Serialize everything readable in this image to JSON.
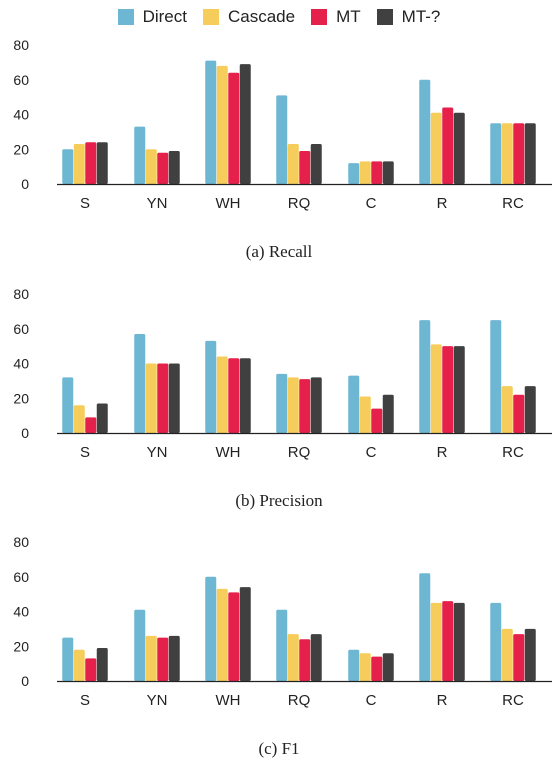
{
  "legend": {
    "series": [
      {
        "name": "Direct",
        "color": "#6db7d3"
      },
      {
        "name": "Cascade",
        "color": "#f6cd5b"
      },
      {
        "name": "MT",
        "color": "#e5204a"
      },
      {
        "name": "MT-?",
        "color": "#404040"
      }
    ]
  },
  "chart_data": [
    {
      "type": "bar",
      "caption": "(a) Recall",
      "categories": [
        "S",
        "YN",
        "WH",
        "RQ",
        "C",
        "R",
        "RC"
      ],
      "ylim": [
        0,
        80
      ],
      "yticks": [
        0,
        20,
        40,
        60,
        80
      ],
      "grid": false,
      "series": [
        {
          "name": "Direct",
          "values": [
            20,
            33,
            71,
            51,
            12,
            60,
            35
          ]
        },
        {
          "name": "Cascade",
          "values": [
            23,
            20,
            68,
            23,
            13,
            41,
            35
          ]
        },
        {
          "name": "MT",
          "values": [
            24,
            18,
            64,
            19,
            13,
            44,
            35
          ]
        },
        {
          "name": "MT-?",
          "values": [
            24,
            19,
            69,
            23,
            13,
            41,
            35
          ]
        }
      ]
    },
    {
      "type": "bar",
      "caption": "(b) Precision",
      "categories": [
        "S",
        "YN",
        "WH",
        "RQ",
        "C",
        "R",
        "RC"
      ],
      "ylim": [
        0,
        80
      ],
      "yticks": [
        0,
        20,
        40,
        60,
        80
      ],
      "grid": false,
      "series": [
        {
          "name": "Direct",
          "values": [
            32,
            57,
            53,
            34,
            33,
            65,
            65
          ]
        },
        {
          "name": "Cascade",
          "values": [
            16,
            40,
            44,
            32,
            21,
            51,
            27
          ]
        },
        {
          "name": "MT",
          "values": [
            9,
            40,
            43,
            31,
            14,
            50,
            22
          ]
        },
        {
          "name": "MT-?",
          "values": [
            17,
            40,
            43,
            32,
            22,
            50,
            27
          ]
        }
      ]
    },
    {
      "type": "bar",
      "caption": "(c) F1",
      "categories": [
        "S",
        "YN",
        "WH",
        "RQ",
        "C",
        "R",
        "RC"
      ],
      "ylim": [
        0,
        80
      ],
      "yticks": [
        0,
        20,
        40,
        60,
        80
      ],
      "grid": false,
      "series": [
        {
          "name": "Direct",
          "values": [
            25,
            41,
            60,
            41,
            18,
            62,
            45
          ]
        },
        {
          "name": "Cascade",
          "values": [
            18,
            26,
            53,
            27,
            16,
            45,
            30
          ]
        },
        {
          "name": "MT",
          "values": [
            13,
            25,
            51,
            24,
            14,
            46,
            27
          ]
        },
        {
          "name": "MT-?",
          "values": [
            19,
            26,
            54,
            27,
            16,
            45,
            30
          ]
        }
      ]
    }
  ]
}
